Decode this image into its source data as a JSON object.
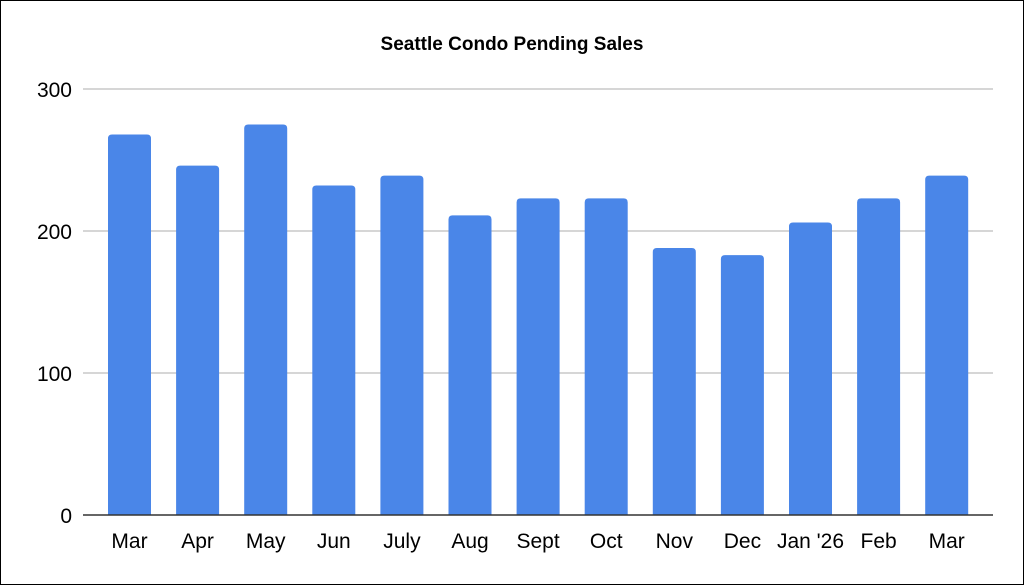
{
  "chart_data": {
    "type": "bar",
    "title": "Seattle Condo Pending Sales",
    "xlabel": "",
    "ylabel": "",
    "categories": [
      "Mar",
      "Apr",
      "May",
      "Jun",
      "July",
      "Aug",
      "Sept",
      "Oct",
      "Nov",
      "Dec",
      "Jan '26",
      "Feb",
      "Mar"
    ],
    "values": [
      268,
      246,
      275,
      232,
      239,
      211,
      223,
      223,
      188,
      183,
      206,
      223,
      239
    ],
    "ylim": [
      0,
      300
    ],
    "yticks": [
      0,
      100,
      200,
      300
    ],
    "grid": true,
    "legend": "none",
    "bar_color": "#4a86e8"
  }
}
